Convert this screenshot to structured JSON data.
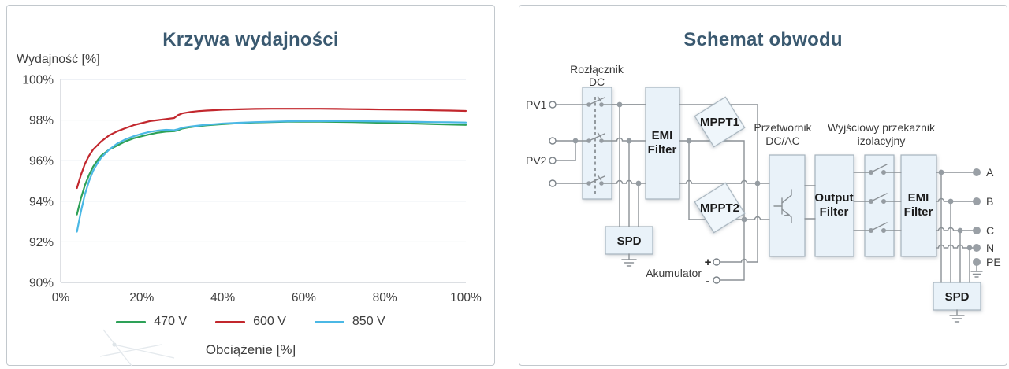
{
  "left_panel": {
    "title": "Krzywa wydajności",
    "y_axis_label": "Wydajność [%]",
    "x_axis_label": "Obciążenie [%]"
  },
  "chart_data": {
    "type": "line",
    "title": "Krzywa wydajności",
    "xlabel": "Obciążenie [%]",
    "ylabel": "Wydajność [%]",
    "xlim": [
      0,
      100
    ],
    "ylim": [
      90,
      100
    ],
    "grid": true,
    "legend_position": "bottom",
    "x_ticks": [
      {
        "value": 0,
        "label": "0%"
      },
      {
        "value": 20,
        "label": "20%"
      },
      {
        "value": 40,
        "label": "40%"
      },
      {
        "value": 60,
        "label": "60%"
      },
      {
        "value": 80,
        "label": "80%"
      },
      {
        "value": 100,
        "label": "100%"
      }
    ],
    "y_ticks": [
      {
        "value": 100,
        "label": "100%"
      },
      {
        "value": 98,
        "label": "98%"
      },
      {
        "value": 96,
        "label": "96%"
      },
      {
        "value": 94,
        "label": "94%"
      },
      {
        "value": 92,
        "label": "92%"
      },
      {
        "value": 90,
        "label": "90%"
      }
    ],
    "series": [
      {
        "name": "470 V",
        "color": "#2ea158",
        "points": [
          [
            4,
            93.35
          ],
          [
            5,
            94.15
          ],
          [
            6,
            94.8
          ],
          [
            7,
            95.3
          ],
          [
            8,
            95.7
          ],
          [
            9,
            96.0
          ],
          [
            10,
            96.25
          ],
          [
            12,
            96.55
          ],
          [
            14,
            96.75
          ],
          [
            16,
            96.95
          ],
          [
            18,
            97.1
          ],
          [
            20,
            97.2
          ],
          [
            22,
            97.3
          ],
          [
            24,
            97.38
          ],
          [
            26,
            97.43
          ],
          [
            28,
            97.45
          ],
          [
            29,
            97.5
          ],
          [
            30,
            97.58
          ],
          [
            32,
            97.65
          ],
          [
            34,
            97.7
          ],
          [
            36,
            97.74
          ],
          [
            38,
            97.77
          ],
          [
            40,
            97.8
          ],
          [
            44,
            97.85
          ],
          [
            48,
            97.88
          ],
          [
            52,
            97.9
          ],
          [
            56,
            97.92
          ],
          [
            60,
            97.92
          ],
          [
            64,
            97.92
          ],
          [
            68,
            97.91
          ],
          [
            72,
            97.9
          ],
          [
            76,
            97.88
          ],
          [
            80,
            97.86
          ],
          [
            84,
            97.84
          ],
          [
            88,
            97.82
          ],
          [
            92,
            97.8
          ],
          [
            96,
            97.78
          ],
          [
            100,
            97.76
          ]
        ]
      },
      {
        "name": "600 V",
        "color": "#c2272d",
        "points": [
          [
            4,
            94.65
          ],
          [
            5,
            95.3
          ],
          [
            6,
            95.85
          ],
          [
            7,
            96.25
          ],
          [
            8,
            96.55
          ],
          [
            9,
            96.75
          ],
          [
            10,
            96.95
          ],
          [
            12,
            97.25
          ],
          [
            14,
            97.45
          ],
          [
            16,
            97.6
          ],
          [
            18,
            97.75
          ],
          [
            20,
            97.85
          ],
          [
            22,
            97.95
          ],
          [
            24,
            98.0
          ],
          [
            26,
            98.05
          ],
          [
            28,
            98.1
          ],
          [
            29,
            98.25
          ],
          [
            30,
            98.33
          ],
          [
            32,
            98.4
          ],
          [
            34,
            98.44
          ],
          [
            36,
            98.47
          ],
          [
            38,
            98.49
          ],
          [
            40,
            98.51
          ],
          [
            44,
            98.53
          ],
          [
            48,
            98.55
          ],
          [
            52,
            98.56
          ],
          [
            56,
            98.56
          ],
          [
            60,
            98.56
          ],
          [
            64,
            98.56
          ],
          [
            68,
            98.55
          ],
          [
            72,
            98.54
          ],
          [
            76,
            98.53
          ],
          [
            80,
            98.52
          ],
          [
            84,
            98.51
          ],
          [
            88,
            98.5
          ],
          [
            92,
            98.48
          ],
          [
            96,
            98.47
          ],
          [
            100,
            98.45
          ]
        ]
      },
      {
        "name": "850 V",
        "color": "#4bb8e5",
        "points": [
          [
            4,
            92.5
          ],
          [
            5,
            93.5
          ],
          [
            6,
            94.35
          ],
          [
            7,
            95.0
          ],
          [
            8,
            95.5
          ],
          [
            9,
            95.85
          ],
          [
            10,
            96.15
          ],
          [
            12,
            96.55
          ],
          [
            14,
            96.85
          ],
          [
            16,
            97.05
          ],
          [
            18,
            97.2
          ],
          [
            20,
            97.32
          ],
          [
            22,
            97.42
          ],
          [
            24,
            97.48
          ],
          [
            26,
            97.52
          ],
          [
            28,
            97.5
          ],
          [
            29,
            97.55
          ],
          [
            30,
            97.62
          ],
          [
            32,
            97.68
          ],
          [
            34,
            97.73
          ],
          [
            36,
            97.77
          ],
          [
            38,
            97.8
          ],
          [
            40,
            97.83
          ],
          [
            44,
            97.87
          ],
          [
            48,
            97.9
          ],
          [
            52,
            97.92
          ],
          [
            56,
            97.94
          ],
          [
            60,
            97.95
          ],
          [
            64,
            97.95
          ],
          [
            68,
            97.95
          ],
          [
            72,
            97.95
          ],
          [
            76,
            97.94
          ],
          [
            80,
            97.93
          ],
          [
            84,
            97.92
          ],
          [
            88,
            97.91
          ],
          [
            92,
            97.9
          ],
          [
            96,
            97.89
          ],
          [
            100,
            97.88
          ]
        ]
      }
    ]
  },
  "right_panel": {
    "title": "Schemat obwodu",
    "labels": {
      "pv1": "PV1",
      "pv2": "PV2",
      "dc_switch_1": "Rozłącznik",
      "dc_switch_2": "DC",
      "emi1_1": "EMI",
      "emi1_2": "Filter",
      "mppt1": "MPPT1",
      "mppt2": "MPPT2",
      "spd1": "SPD",
      "inverter_1": "Przetwornik",
      "inverter_2": "DC/AC",
      "output_filter_1": "Output",
      "output_filter_2": "Filter",
      "relay_1": "Wyjściowy przekaźnik",
      "relay_2": "izolacyjny",
      "emi2_1": "EMI",
      "emi2_2": "Filter",
      "spd2": "SPD",
      "battery": "Akumulator",
      "battery_plus": "+",
      "battery_minus": "-",
      "out_a": "A",
      "out_b": "B",
      "out_c": "C",
      "out_n": "N",
      "out_pe": "PE"
    }
  }
}
